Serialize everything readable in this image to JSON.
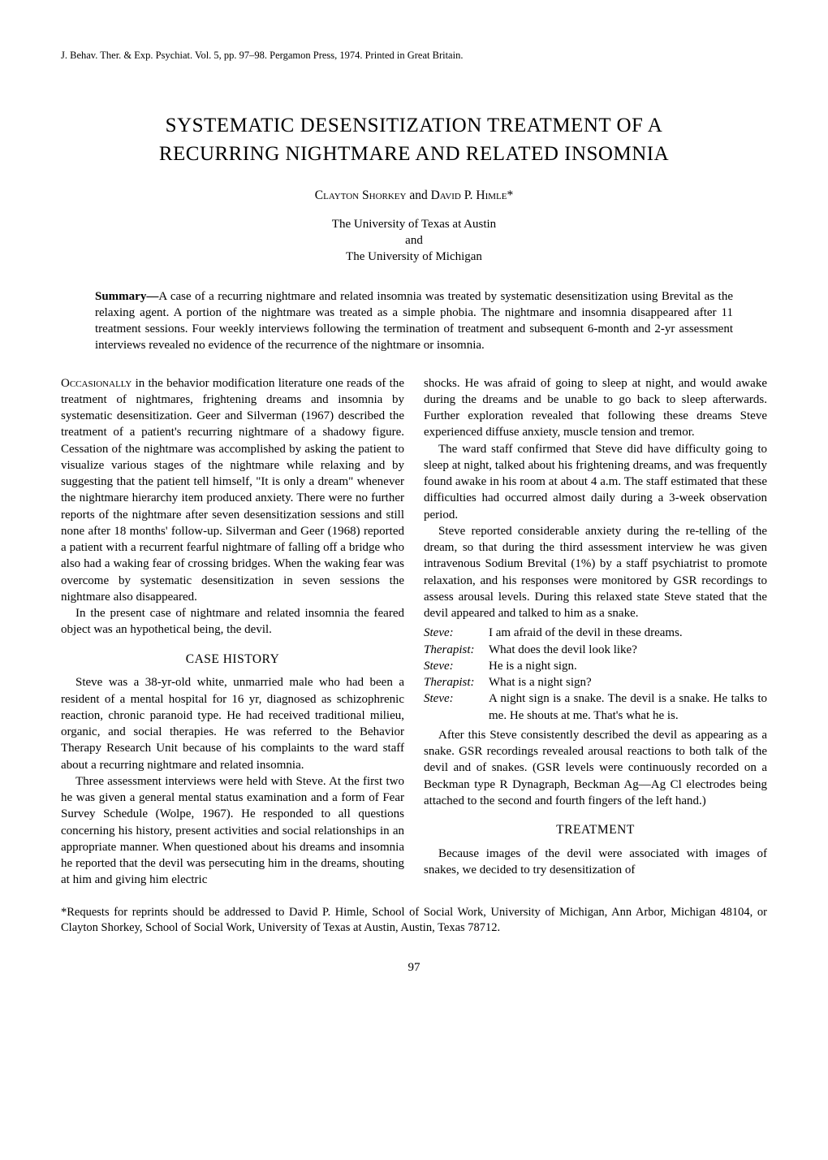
{
  "journal_header": "J. Behav. Ther. & Exp. Psychiat. Vol. 5, pp. 97–98. Pergamon Press, 1974. Printed in Great Britain.",
  "title_line1": "SYSTEMATIC DESENSITIZATION TREATMENT OF A",
  "title_line2": "RECURRING NIGHTMARE AND RELATED INSOMNIA",
  "authors_prefix": "Clayton Shorkey",
  "authors_and": " and ",
  "authors_suffix": "David P. Himle*",
  "affiliation_line1": "The University of Texas at Austin",
  "affiliation_line2": "and",
  "affiliation_line3": "The University of Michigan",
  "summary_label": "Summary—",
  "summary_text": "A case of a recurring nightmare and related insomnia was treated by systematic desensitization using Brevital as the relaxing agent. A portion of the nightmare was treated as a simple phobia. The nightmare and insomnia disappeared after 11 treatment sessions. Four weekly interviews following the termination of treatment and subsequent 6-month and 2-yr assessment interviews revealed no evidence of the recurrence of the nightmare or insomnia.",
  "left": {
    "p1_lead": "Occasionally",
    "p1_rest": " in the behavior modification literature one reads of the treatment of nightmares, frightening dreams and insomnia by systematic desensitization. Geer and Silverman (1967) described the treatment of a patient's recurring nightmare of a shadowy figure. Cessation of the nightmare was accomplished by asking the patient to visualize various stages of the nightmare while relaxing and by suggesting that the patient tell himself, \"It is only a dream\" whenever the nightmare hierarchy item produced anxiety. There were no further reports of the nightmare after seven desensitization sessions and still none after 18 months' follow-up. Silverman and Geer (1968) reported a patient with a recurrent fearful nightmare of falling off a bridge who also had a waking fear of crossing bridges. When the waking fear was overcome by systematic desensitization in seven sessions the nightmare also disappeared.",
    "p2": "In the present case of nightmare and related insomnia the feared object was an hypothetical being, the devil.",
    "case_heading": "CASE HISTORY",
    "p3": "Steve was a 38-yr-old white, unmarried male who had been a resident of a mental hospital for 16 yr, diagnosed as schizophrenic reaction, chronic paranoid type. He had received traditional milieu, organic, and social therapies. He was referred to the Behavior Therapy Research Unit because of his complaints to the ward staff about a recurring nightmare and related insomnia.",
    "p4": "Three assessment interviews were held with Steve. At the first two he was given a general mental status examination and a form of Fear Survey Schedule (Wolpe, 1967). He responded to all questions concerning his history, present activities and social relationships in an appropriate manner. When questioned about his dreams and insomnia he reported that the devil was persecuting him in the dreams, shouting at him and giving him electric"
  },
  "right": {
    "p1": "shocks. He was afraid of going to sleep at night, and would awake during the dreams and be unable to go back to sleep afterwards. Further exploration revealed that following these dreams Steve experienced diffuse anxiety, muscle tension and tremor.",
    "p2": "The ward staff confirmed that Steve did have difficulty going to sleep at night, talked about his frightening dreams, and was frequently found awake in his room at about 4 a.m. The staff estimated that these difficulties had occurred almost daily during a 3-week observation period.",
    "p3": "Steve reported considerable anxiety during the re-telling of the dream, so that during the third assessment interview he was given intravenous Sodium Brevital (1%) by a staff psychiatrist to promote relaxation, and his responses were monitored by GSR recordings to assess arousal levels. During this relaxed state Steve stated that the devil appeared and talked to him as a snake.",
    "dialogue": [
      {
        "speaker": "Steve:",
        "line": "I am afraid of the devil in these dreams."
      },
      {
        "speaker": "Therapist:",
        "line": "What does the devil look like?"
      },
      {
        "speaker": "Steve:",
        "line": "He is a night sign."
      },
      {
        "speaker": "Therapist:",
        "line": "What is a night sign?"
      },
      {
        "speaker": "Steve:",
        "line": "A night sign is a snake. The devil is a snake. He talks to me. He shouts at me. That's what he is."
      }
    ],
    "p4": "After this Steve consistently described the devil as appearing as a snake. GSR recordings revealed arousal reactions to both talk of the devil and of snakes. (GSR levels were continuously recorded on a Beckman type R Dynagraph, Beckman Ag—Ag Cl electrodes being attached to the second and fourth fingers of the left hand.)",
    "treatment_heading": "TREATMENT",
    "p5": "Because images of the devil were associated with images of snakes, we decided to try desensitization of"
  },
  "footnote": "*Requests for reprints should be addressed to David P. Himle, School of Social Work, University of Michigan, Ann Arbor, Michigan 48104, or Clayton Shorkey, School of Social Work, University of Texas at Austin, Austin, Texas 78712.",
  "page_number": "97"
}
